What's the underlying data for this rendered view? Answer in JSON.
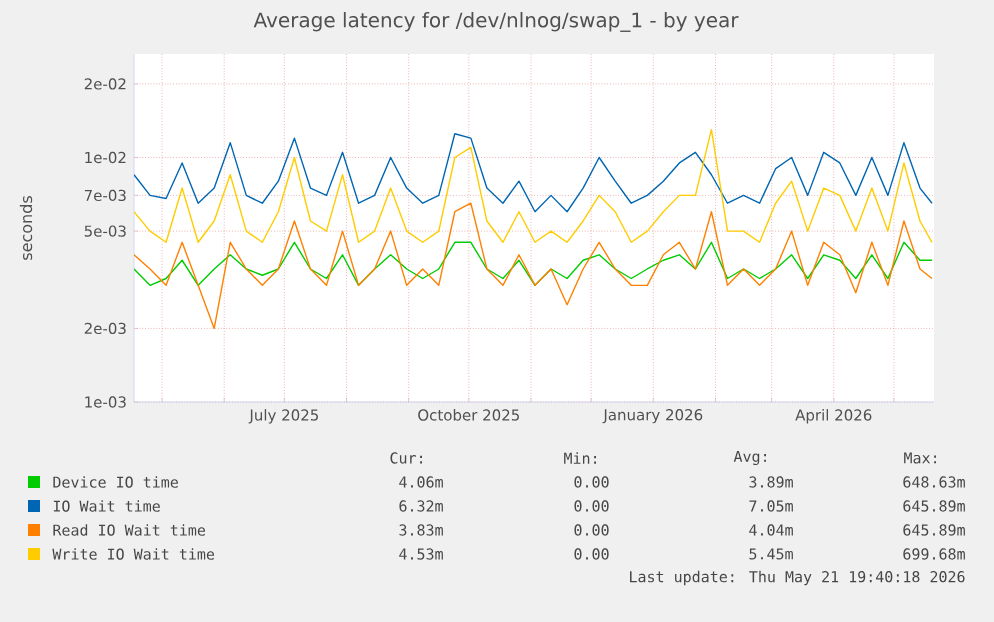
{
  "chart_data": {
    "type": "line",
    "title": "Average latency for /dev/nlnog/swap_1 - by year",
    "ylabel": "seconds",
    "log": "y",
    "grid": true,
    "legend": "bottom",
    "xlim": [
      "2025-04-17",
      "2026-05-21"
    ],
    "xticks": [
      {
        "value": "2025-05-01",
        "label": null
      },
      {
        "value": "2025-06-01",
        "label": null
      },
      {
        "value": "2025-07-01",
        "label": "July 2025"
      },
      {
        "value": "2025-08-01",
        "label": null
      },
      {
        "value": "2025-09-01",
        "label": null
      },
      {
        "value": "2025-10-01",
        "label": "October 2025"
      },
      {
        "value": "2025-11-01",
        "label": null
      },
      {
        "value": "2025-12-01",
        "label": null
      },
      {
        "value": "2026-01-01",
        "label": "January 2026"
      },
      {
        "value": "2026-02-01",
        "label": null
      },
      {
        "value": "2026-03-01",
        "label": null
      },
      {
        "value": "2026-04-01",
        "label": "April 2026"
      },
      {
        "value": "2026-05-01",
        "label": null
      }
    ],
    "ylim": [
      0.001,
      0.0265
    ],
    "yticks": [
      {
        "value": 0.001,
        "label": "1e-03"
      },
      {
        "value": 0.002,
        "label": "2e-03"
      },
      {
        "value": 0.005,
        "label": "5e-03"
      },
      {
        "value": 0.007,
        "label": "7e-03"
      },
      {
        "value": 0.01,
        "label": "1e-02"
      },
      {
        "value": 0.02,
        "label": "2e-02"
      }
    ],
    "x": [
      "2025-04-17",
      "2025-04-25",
      "2025-05-03",
      "2025-05-11",
      "2025-05-19",
      "2025-05-27",
      "2025-06-04",
      "2025-06-12",
      "2025-06-20",
      "2025-06-28",
      "2025-07-06",
      "2025-07-14",
      "2025-07-22",
      "2025-07-30",
      "2025-08-07",
      "2025-08-15",
      "2025-08-23",
      "2025-08-31",
      "2025-09-08",
      "2025-09-16",
      "2025-09-24",
      "2025-10-02",
      "2025-10-10",
      "2025-10-18",
      "2025-10-26",
      "2025-11-03",
      "2025-11-11",
      "2025-11-19",
      "2025-11-27",
      "2025-12-05",
      "2025-12-13",
      "2025-12-21",
      "2025-12-29",
      "2026-01-06",
      "2026-01-14",
      "2026-01-22",
      "2026-01-30",
      "2026-02-07",
      "2026-02-15",
      "2026-02-23",
      "2026-03-03",
      "2026-03-11",
      "2026-03-19",
      "2026-03-27",
      "2026-04-04",
      "2026-04-12",
      "2026-04-20",
      "2026-04-28",
      "2026-05-06",
      "2026-05-14",
      "2026-05-20"
    ],
    "series": [
      {
        "name": "Device IO time",
        "color": "#00cc00",
        "values": [
          0.0035,
          0.003,
          0.0032,
          0.0038,
          0.003,
          0.0035,
          0.004,
          0.0035,
          0.0033,
          0.0035,
          0.0045,
          0.0035,
          0.0032,
          0.004,
          0.003,
          0.0035,
          0.004,
          0.0035,
          0.0032,
          0.0035,
          0.0045,
          0.0045,
          0.0035,
          0.0032,
          0.0038,
          0.003,
          0.0035,
          0.0032,
          0.0038,
          0.004,
          0.0035,
          0.0032,
          0.0035,
          0.0038,
          0.004,
          0.0035,
          0.0045,
          0.0032,
          0.0035,
          0.0032,
          0.0035,
          0.004,
          0.0032,
          0.004,
          0.0038,
          0.0032,
          0.004,
          0.0032,
          0.0045,
          0.0038,
          0.0038
        ]
      },
      {
        "name": "IO Wait time",
        "color": "#0066b3",
        "values": [
          0.0085,
          0.007,
          0.0068,
          0.0095,
          0.0065,
          0.0075,
          0.0115,
          0.007,
          0.0065,
          0.008,
          0.012,
          0.0075,
          0.007,
          0.0105,
          0.0065,
          0.007,
          0.01,
          0.0075,
          0.0065,
          0.007,
          0.0125,
          0.012,
          0.0075,
          0.0065,
          0.008,
          0.006,
          0.007,
          0.006,
          0.0075,
          0.01,
          0.008,
          0.0065,
          0.007,
          0.008,
          0.0095,
          0.0105,
          0.0085,
          0.0065,
          0.007,
          0.0065,
          0.009,
          0.01,
          0.007,
          0.0105,
          0.0095,
          0.007,
          0.01,
          0.007,
          0.0115,
          0.0075,
          0.0065
        ]
      },
      {
        "name": "Read IO Wait time",
        "color": "#ff8000",
        "values": [
          0.004,
          0.0035,
          0.003,
          0.0045,
          0.003,
          0.002,
          0.0045,
          0.0035,
          0.003,
          0.0035,
          0.0055,
          0.0035,
          0.003,
          0.005,
          0.003,
          0.0035,
          0.005,
          0.003,
          0.0035,
          0.003,
          0.006,
          0.0065,
          0.0035,
          0.003,
          0.004,
          0.003,
          0.0035,
          0.0025,
          0.0035,
          0.0045,
          0.0035,
          0.003,
          0.003,
          0.004,
          0.0045,
          0.0035,
          0.006,
          0.003,
          0.0035,
          0.003,
          0.0035,
          0.005,
          0.003,
          0.0045,
          0.004,
          0.0028,
          0.0045,
          0.003,
          0.0055,
          0.0035,
          0.0032
        ]
      },
      {
        "name": "Write IO Wait time",
        "color": "#ffcc00",
        "values": [
          0.006,
          0.005,
          0.0045,
          0.0075,
          0.0045,
          0.0055,
          0.0085,
          0.005,
          0.0045,
          0.006,
          0.01,
          0.0055,
          0.005,
          0.0085,
          0.0045,
          0.005,
          0.0075,
          0.005,
          0.0045,
          0.005,
          0.01,
          0.011,
          0.0055,
          0.0045,
          0.006,
          0.0045,
          0.005,
          0.0045,
          0.0055,
          0.007,
          0.006,
          0.0045,
          0.005,
          0.006,
          0.007,
          0.007,
          0.013,
          0.005,
          0.005,
          0.0045,
          0.0065,
          0.008,
          0.005,
          0.0075,
          0.007,
          0.005,
          0.0075,
          0.005,
          0.0095,
          0.0055,
          0.0045
        ]
      }
    ],
    "annotations": [
      "Cur:",
      "Min:",
      "Avg:",
      "Max:",
      "4.06m",
      "0.00",
      "3.89m",
      "648.63m",
      "6.32m",
      "0.00",
      "7.05m",
      "645.89m",
      "3.83m",
      "0.00",
      "4.04m",
      "645.89m",
      "4.53m",
      "0.00",
      "5.45m",
      "699.68m",
      "Last update: Thu May 21 19:40:18 2026"
    ]
  }
}
